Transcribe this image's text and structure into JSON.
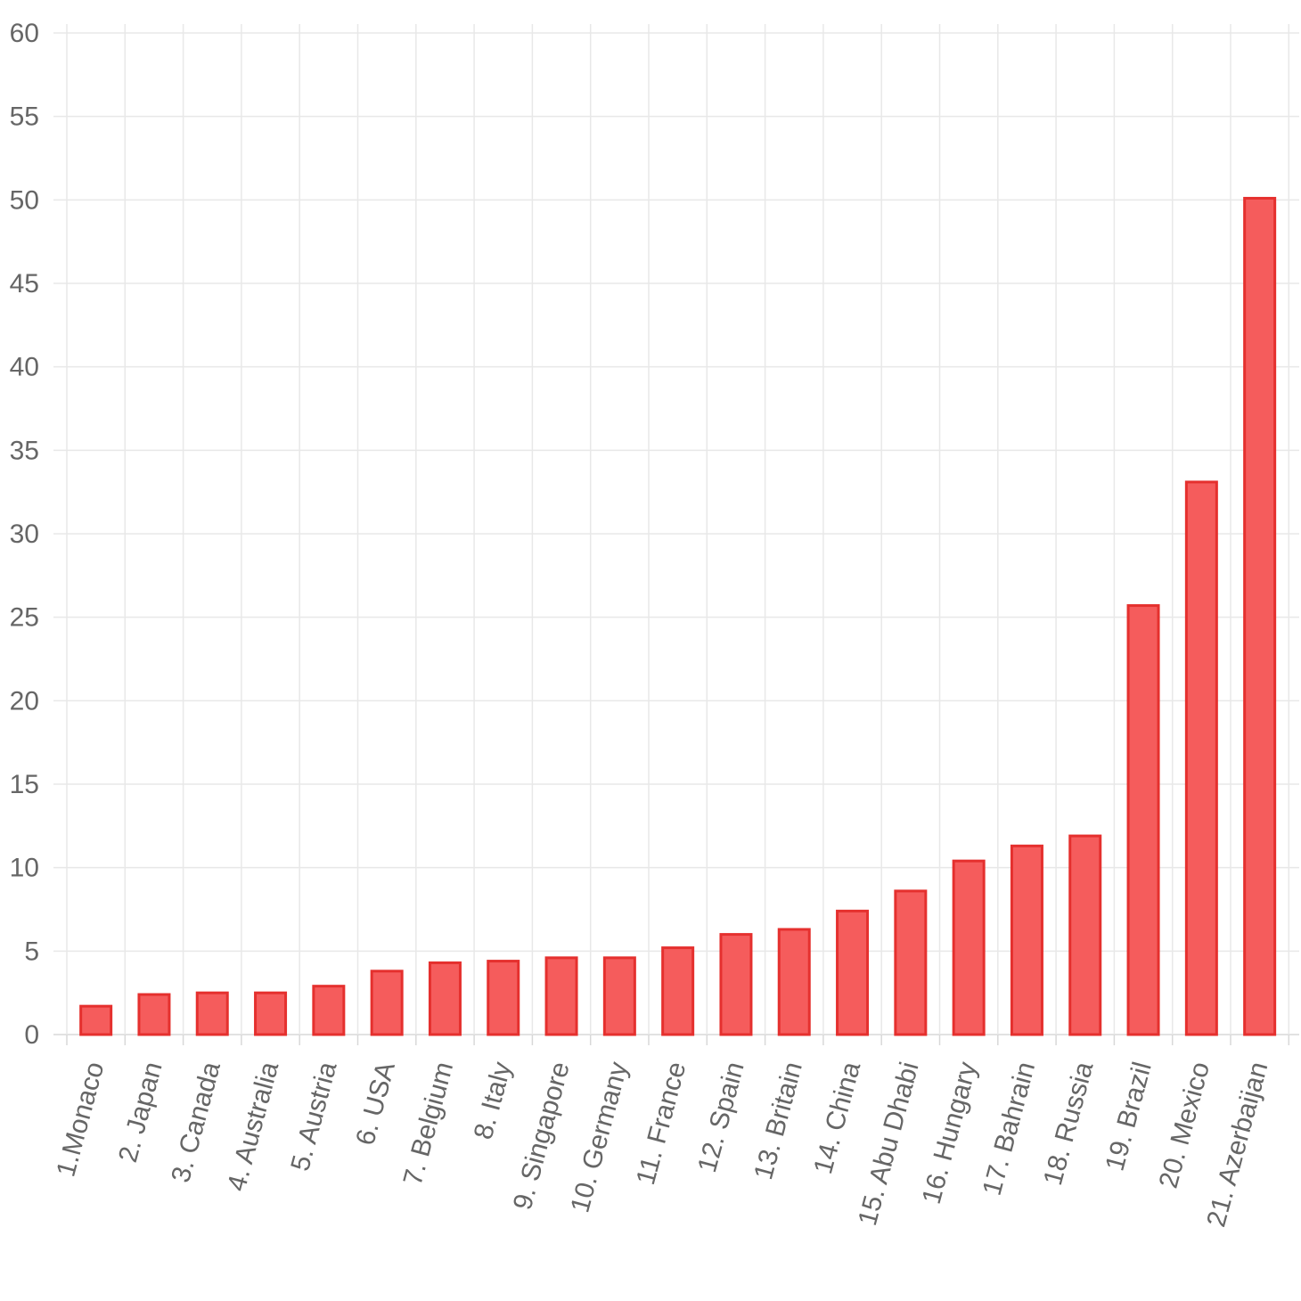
{
  "chart_data": {
    "type": "bar",
    "title": "",
    "xlabel": "",
    "ylabel": "",
    "ylim": [
      0,
      60
    ],
    "ytick_step": 5,
    "grid": true,
    "legend": "none",
    "categories": [
      "1.Monaco",
      "2. Japan",
      "3. Canada",
      "4. Australia",
      "5. Austria",
      "6. USA",
      "7. Belgium",
      "8. Italy",
      "9. Singapore",
      "10. Germany",
      "11. France",
      "12. Spain",
      "13. Britain",
      "14. China",
      "15. Abu Dhabi",
      "16. Hungary",
      "17. Bahrain",
      "18. Russia",
      "19. Brazil",
      "20. Mexico",
      "21. Azerbaijan"
    ],
    "values": [
      1.7,
      2.4,
      2.5,
      2.5,
      2.9,
      3.8,
      4.3,
      4.4,
      4.6,
      4.6,
      5.2,
      6.0,
      6.3,
      7.4,
      8.6,
      10.4,
      11.3,
      11.9,
      25.7,
      33.1,
      50.1
    ],
    "bar_fill": "#f55c5c",
    "bar_stroke": "#e5302e"
  }
}
